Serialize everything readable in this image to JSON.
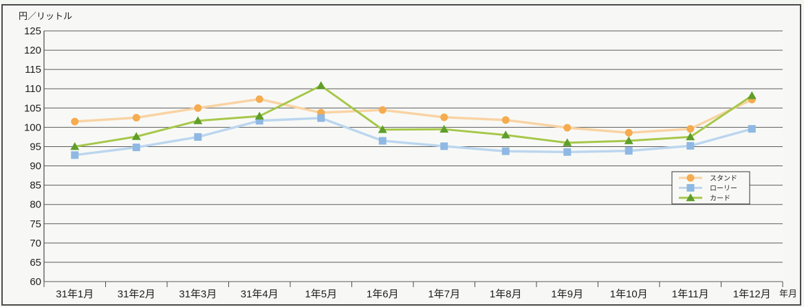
{
  "chart_data": {
    "type": "line",
    "y_unit_label": "円／リットル",
    "x_unit_label": "年月",
    "categories": [
      "31年1月",
      "31年2月",
      "31年3月",
      "31年4月",
      "1年5月",
      "1年6月",
      "1年7月",
      "1年8月",
      "1年9月",
      "1年10月",
      "1年11月",
      "1年12月"
    ],
    "ylim": [
      60,
      125
    ],
    "yticks": [
      60,
      65,
      70,
      75,
      80,
      85,
      90,
      95,
      100,
      105,
      110,
      115,
      120,
      125
    ],
    "grid": true,
    "legend_position": "right",
    "series": [
      {
        "name": "スタンド",
        "color": "#f5ab4f",
        "line_color": "#f9d3a4",
        "marker": "circle",
        "values": [
          101.5,
          102.5,
          105.0,
          107.3,
          103.8,
          104.5,
          102.6,
          101.9,
          99.9,
          98.6,
          99.6,
          107.2
        ]
      },
      {
        "name": "ローリー",
        "color": "#8fb8e3",
        "line_color": "#bcd6ef",
        "marker": "square",
        "values": [
          92.8,
          94.8,
          97.5,
          101.7,
          102.4,
          96.5,
          95.1,
          93.8,
          93.6,
          93.9,
          95.2,
          99.6
        ]
      },
      {
        "name": "カード",
        "color": "#5f9e2a",
        "line_color": "#a6c74a",
        "marker": "triangle",
        "values": [
          95.0,
          97.6,
          101.7,
          102.9,
          110.8,
          99.4,
          99.5,
          98.0,
          96.0,
          96.5,
          97.5,
          108.2
        ]
      }
    ]
  }
}
